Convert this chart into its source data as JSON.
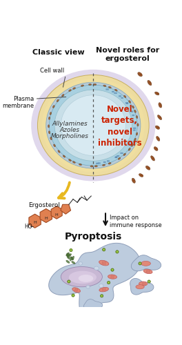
{
  "title_left": "Classic view",
  "title_right": "Novel roles for\nergosterol",
  "label_cell_wall": "Cell wall",
  "label_plasma_membrane": "Plasma\nmembrane",
  "label_allylamines": "Allylamines",
  "label_azoles": "Azoles",
  "label_morpholines": "Morpholines",
  "label_novel": "Novel\ntargets,\nnovel\ninhibitors",
  "label_ergosterol": "Ergosterol",
  "label_immune": "Impact on\nimmune response",
  "label_pyroptosis": "Pyroptosis",
  "bg_color": "#ffffff",
  "cell_outer_color": "#eddca0",
  "cell_wall_inner": "#e8d090",
  "cell_membrane_blue": "#90bcd0",
  "cell_membrane_inner": "#c0d8e4",
  "cytoplasm_color": "#d8eaf2",
  "cytoplasm_edge": "#b0ccd8",
  "membrane_brown": "#9B6030",
  "membrane_stripe_blue": "#6090b8",
  "ergosterol_ring_color": "#e08050",
  "ergosterol_ring_edge": "#a04820",
  "novel_text_color": "#cc2200",
  "spore_color": "#8B4010",
  "pyro_cell_color": "#b8c8dc",
  "pyro_cell_edge": "#8898b4",
  "pyro_nucleus_color": "#c8b0cc",
  "pyro_nucleus_light": "#e0d0e8",
  "pyro_mito_color": "#e08878",
  "pyro_mito_edge": "#c05858",
  "pyro_green": "#80b030",
  "pyro_green_edge": "#507018",
  "pyro_vacuole": "#c8d8e8",
  "pyro_er_color": "#507838"
}
